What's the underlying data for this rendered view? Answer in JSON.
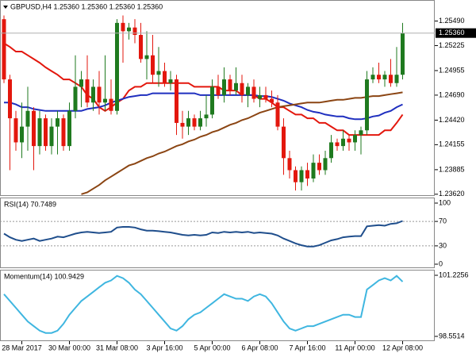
{
  "chart_data": [
    {
      "type": "candlestick",
      "title": "GBPUSD,H4 1.25360 1.25360 1.25360 1.25360",
      "categories": [
        null,
        null,
        null,
        "28 Mar 2017",
        null,
        null,
        null,
        null,
        null,
        null,
        null,
        "30 Mar 00:00",
        null,
        null,
        null,
        null,
        null,
        null,
        null,
        "31 Mar 08:00",
        null,
        null,
        null,
        null,
        null,
        null,
        null,
        "3 Apr 16:00",
        null,
        null,
        null,
        null,
        null,
        null,
        null,
        "5 Apr 00:00",
        null,
        null,
        null,
        null,
        null,
        null,
        null,
        "6 Apr 08:00",
        null,
        null,
        null,
        null,
        null,
        null,
        null,
        "7 Apr 16:00",
        null,
        null,
        null,
        null,
        null,
        null,
        null,
        "11 Apr 00:00",
        null,
        null,
        null,
        null,
        null,
        null,
        null,
        "12 Apr 08:00"
      ],
      "open": [
        1.2551,
        1.2486,
        1.2444,
        1.2418,
        1.2435,
        1.2452,
        1.2414,
        1.2444,
        1.2414,
        1.2435,
        1.2444,
        1.2414,
        1.2452,
        1.2478,
        1.2486,
        1.2461,
        1.2478,
        1.2461,
        1.2465,
        1.2452,
        1.2547,
        1.2538,
        1.2542,
        1.2534,
        1.2508,
        1.2512,
        1.2491,
        1.2495,
        1.2482,
        1.2486,
        1.2439,
        1.2435,
        1.2444,
        1.2435,
        1.2444,
        1.2448,
        1.2478,
        1.2469,
        1.2486,
        1.2474,
        1.2482,
        1.2469,
        1.2478,
        1.2465,
        1.2469,
        1.2465,
        1.2461,
        1.2435,
        1.2401,
        1.2388,
        1.2375,
        1.2388,
        1.2379,
        1.2396,
        1.2388,
        1.2401,
        1.2418,
        1.2414,
        1.2422,
        1.2418,
        1.2426,
        1.2431,
        1.2486,
        1.2491,
        1.2486,
        1.2491,
        1.2482,
        1.2491
      ],
      "high": [
        1.2555,
        1.2491,
        1.2452,
        1.2461,
        1.2478,
        1.2456,
        1.2452,
        1.2448,
        1.2444,
        1.2452,
        1.2448,
        1.2461,
        1.2512,
        1.2495,
        1.2512,
        1.2486,
        1.2495,
        1.2512,
        1.2486,
        1.2551,
        1.2555,
        1.2547,
        1.2551,
        1.2547,
        1.2538,
        1.2534,
        1.2521,
        1.2504,
        1.2495,
        1.2491,
        1.2452,
        1.2452,
        1.2448,
        1.2452,
        1.2469,
        1.2486,
        1.2491,
        1.2499,
        1.2491,
        1.2499,
        1.2491,
        1.2482,
        1.2486,
        1.2478,
        1.2478,
        1.2474,
        1.2469,
        1.2444,
        1.2409,
        1.2392,
        1.2392,
        1.2396,
        1.2405,
        1.2405,
        1.2409,
        1.2426,
        1.2422,
        1.2431,
        1.2426,
        1.2431,
        1.2435,
        1.2495,
        1.2499,
        1.2504,
        1.2495,
        1.2508,
        1.2521,
        1.2547
      ],
      "low": [
        1.2482,
        1.2388,
        1.2409,
        1.2401,
        1.2409,
        1.2388,
        1.2405,
        1.2409,
        1.2405,
        1.2405,
        1.2409,
        1.2409,
        1.2444,
        1.2456,
        1.2456,
        1.2452,
        1.2448,
        1.2452,
        1.2448,
        1.2448,
        1.2504,
        1.2529,
        1.2525,
        1.2504,
        1.2486,
        1.2482,
        1.2478,
        1.2478,
        1.2474,
        1.2426,
        1.2422,
        1.2426,
        1.2431,
        1.2431,
        1.2435,
        1.2444,
        1.2465,
        1.2461,
        1.2469,
        1.2469,
        1.2461,
        1.2456,
        1.2461,
        1.2456,
        1.2461,
        1.2456,
        1.2431,
        1.2383,
        1.2379,
        1.2366,
        1.2366,
        1.2371,
        1.2375,
        1.2383,
        1.2383,
        1.2396,
        1.2409,
        1.2409,
        1.2409,
        1.2409,
        1.2405,
        1.2426,
        1.2482,
        1.2482,
        1.2478,
        1.2478,
        1.2478,
        1.2486
      ],
      "close": [
        1.2486,
        1.2444,
        1.2418,
        1.2435,
        1.2452,
        1.2414,
        1.2444,
        1.2414,
        1.2435,
        1.2444,
        1.2414,
        1.2452,
        1.2478,
        1.2486,
        1.2461,
        1.2478,
        1.2461,
        1.2465,
        1.2452,
        1.2547,
        1.2538,
        1.2542,
        1.2534,
        1.2508,
        1.2512,
        1.2491,
        1.2495,
        1.2482,
        1.2486,
        1.2439,
        1.2435,
        1.2444,
        1.2435,
        1.2444,
        1.2448,
        1.2478,
        1.2469,
        1.2486,
        1.2474,
        1.2482,
        1.2469,
        1.2478,
        1.2465,
        1.2469,
        1.2465,
        1.2461,
        1.2435,
        1.2401,
        1.2388,
        1.2375,
        1.2388,
        1.2379,
        1.2396,
        1.2388,
        1.2401,
        1.2418,
        1.2414,
        1.2422,
        1.2418,
        1.2426,
        1.2431,
        1.2486,
        1.2491,
        1.2486,
        1.2491,
        1.2482,
        1.2491,
        1.2536
      ],
      "up_color": "#1f7a1f",
      "down_color": "#e3170d",
      "overlays": [
        {
          "color": "#e3170d",
          "values": [
            1.2525,
            1.2521,
            1.2516,
            1.2516,
            1.2512,
            1.2508,
            1.2504,
            1.2499,
            1.2495,
            1.2491,
            1.2486,
            1.2486,
            1.2482,
            1.2478,
            1.2469,
            1.2465,
            1.2456,
            1.2452,
            1.2456,
            1.2461,
            1.2465,
            1.2474,
            1.2478,
            1.2478,
            1.2482,
            1.2482,
            1.2482,
            1.2482,
            1.2482,
            1.2482,
            1.2482,
            1.2482,
            1.2478,
            1.2478,
            1.2478,
            1.2478,
            1.2478,
            1.2474,
            1.2474,
            1.2474,
            1.2469,
            1.2469,
            1.2469,
            1.2465,
            1.2465,
            1.2461,
            1.2456,
            1.2456,
            1.2452,
            1.2448,
            1.2448,
            1.2444,
            1.2444,
            1.2439,
            1.2439,
            1.2435,
            1.2431,
            1.2431,
            1.2426,
            1.2426,
            1.2426,
            1.2426,
            1.2426,
            1.2426,
            1.2431,
            1.2431,
            1.2439,
            1.2448
          ]
        },
        {
          "color": "#1f2fbf",
          "values": [
            1.2461,
            1.2461,
            1.2459,
            1.2456,
            1.2456,
            1.2454,
            1.2453,
            1.2452,
            1.2452,
            1.2452,
            1.2452,
            1.2452,
            1.2452,
            1.2452,
            1.2454,
            1.2455,
            1.2456,
            1.2458,
            1.2461,
            1.2463,
            1.2465,
            1.2467,
            1.2468,
            1.2469,
            1.2469,
            1.2471,
            1.2471,
            1.2471,
            1.2471,
            1.2471,
            1.2471,
            1.2471,
            1.2471,
            1.2469,
            1.2469,
            1.2469,
            1.2469,
            1.2469,
            1.2469,
            1.2469,
            1.2469,
            1.2469,
            1.2469,
            1.2468,
            1.2468,
            1.2467,
            1.2465,
            1.2463,
            1.246,
            1.2458,
            1.2456,
            1.2453,
            1.2451,
            1.245,
            1.2448,
            1.2447,
            1.2446,
            1.2446,
            1.2444,
            1.2443,
            1.2443,
            1.2444,
            1.2446,
            1.2447,
            1.245,
            1.2452,
            1.2456,
            1.2459
          ]
        },
        {
          "color": "#8b4513",
          "values": [
            null,
            null,
            null,
            null,
            null,
            null,
            null,
            null,
            null,
            null,
            null,
            null,
            null,
            1.2362,
            1.2364,
            1.2368,
            1.2372,
            1.2377,
            1.2381,
            1.2385,
            1.2389,
            1.2393,
            1.2395,
            1.2398,
            1.2401,
            1.2403,
            1.2406,
            1.2408,
            1.2411,
            1.2414,
            1.2416,
            1.2419,
            1.2421,
            1.2424,
            1.2426,
            1.2429,
            1.2431,
            1.2434,
            1.2437,
            1.2439,
            1.2442,
            1.2444,
            1.2447,
            1.245,
            1.2452,
            1.2454,
            1.2456,
            1.2457,
            1.2458,
            1.2459,
            1.246,
            1.2461,
            1.2461,
            1.2461,
            1.2462,
            1.2463,
            1.2464,
            1.2464,
            1.2465,
            1.2466,
            1.2466,
            1.2467,
            1.2468,
            1.2468,
            1.2469,
            1.247,
            1.2471,
            1.2472
          ]
        }
      ],
      "current_price": {
        "value": 1.2536,
        "label": "1.25360"
      },
      "ylim": [
        1.2361,
        1.257
      ],
      "yticks": [
        {
          "value": 1.2549,
          "label": "1.25490"
        },
        1.25225,
        1.24955,
        {
          "value": 1.2469,
          "label": "1.24690"
        },
        {
          "value": 1.2442,
          "label": "1.24420"
        },
        1.24155,
        1.23885,
        {
          "value": 1.2362,
          "label": "1.23620"
        }
      ]
    },
    {
      "type": "line",
      "title": "RSI(14) 70.7489",
      "color": "#1f4e8c",
      "values": [
        50,
        44,
        40,
        38,
        40,
        42,
        38,
        40,
        42,
        45,
        44,
        47,
        50,
        52,
        53,
        52,
        51,
        52,
        53,
        60,
        61,
        61,
        60,
        57,
        55,
        55,
        54,
        53,
        52,
        50,
        48,
        47,
        48,
        47,
        48,
        52,
        51,
        53,
        52,
        53,
        52,
        53,
        51,
        52,
        51,
        50,
        47,
        42,
        38,
        34,
        31,
        29,
        29,
        31,
        35,
        39,
        41,
        44,
        45,
        46,
        46,
        62,
        63,
        64,
        63,
        66,
        67,
        70.7489
      ],
      "levels": [
        70,
        30
      ],
      "ylim": [
        -6.5,
        107.8
      ],
      "yticks": [
        100,
        70,
        30,
        0
      ]
    },
    {
      "type": "line",
      "title": "Momentum(14) 100.9429",
      "color": "#3fb6e0",
      "values": [
        100.4,
        100.1,
        99.8,
        99.5,
        99.2,
        99.0,
        98.8,
        98.7,
        98.7,
        98.8,
        99.1,
        99.5,
        99.8,
        100.1,
        100.3,
        100.5,
        100.7,
        100.9,
        101.0,
        101.2,
        101.1,
        100.9,
        100.6,
        100.4,
        100.1,
        99.8,
        99.5,
        99.2,
        98.9,
        98.8,
        99.0,
        99.3,
        99.5,
        99.6,
        99.8,
        100.0,
        100.2,
        100.4,
        100.3,
        100.2,
        100.2,
        100.1,
        100.3,
        100.4,
        100.3,
        100.0,
        99.6,
        99.2,
        98.9,
        98.8,
        98.9,
        99.0,
        99.0,
        99.1,
        99.2,
        99.3,
        99.4,
        99.5,
        99.5,
        99.4,
        99.4,
        100.6,
        100.8,
        101.0,
        101.1,
        101.0,
        101.2,
        100.9429
      ],
      "ylim": [
        98.343,
        101.434
      ],
      "yticks": [
        101.2256,
        98.5514
      ]
    }
  ]
}
